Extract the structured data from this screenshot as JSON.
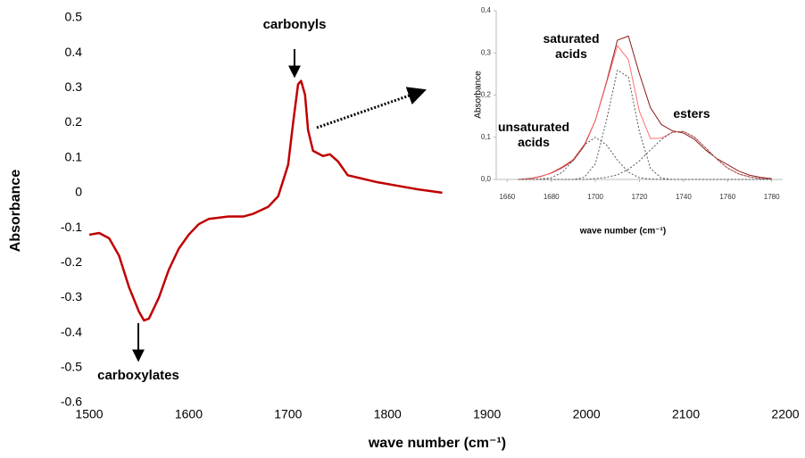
{
  "chart_data": [
    {
      "type": "line",
      "xlabel": "wave number (cm⁻¹)",
      "ylabel": "Absorbance",
      "xlim": [
        1500,
        2200
      ],
      "xticks": [
        1500,
        1600,
        1700,
        1800,
        1900,
        2000,
        2100,
        2200
      ],
      "ylim": [
        -0.6,
        0.5
      ],
      "yticks": [
        -0.6,
        -0.5,
        -0.4,
        -0.3,
        -0.2,
        -0.1,
        0,
        0.1,
        0.2,
        0.3,
        0.4,
        0.5
      ],
      "annotations": [
        [
          "carbonyls"
        ],
        [
          "carboxylates"
        ]
      ],
      "x": [
        1500,
        1510,
        1520,
        1530,
        1540,
        1550,
        1555,
        1560,
        1570,
        1580,
        1590,
        1600,
        1610,
        1620,
        1640,
        1655,
        1665,
        1680,
        1690,
        1700,
        1705,
        1710,
        1713,
        1717,
        1720,
        1725,
        1735,
        1742,
        1750,
        1760,
        1775,
        1790,
        1810,
        1830,
        1855
      ],
      "series": [
        {
          "name": null,
          "color": "#c00000",
          "values": [
            -0.12,
            -0.115,
            -0.13,
            -0.18,
            -0.27,
            -0.34,
            -0.365,
            -0.36,
            -0.3,
            -0.22,
            -0.16,
            -0.12,
            -0.09,
            -0.075,
            -0.068,
            -0.068,
            -0.06,
            -0.04,
            -0.01,
            0.08,
            0.2,
            0.31,
            0.32,
            0.28,
            0.18,
            0.12,
            0.105,
            0.11,
            0.09,
            0.05,
            0.04,
            0.03,
            0.02,
            0.01,
            0
          ]
        }
      ]
    },
    {
      "type": "line",
      "xlabel": "wave number (cm⁻¹)",
      "ylabel": "Absorbance",
      "xlim": [
        1655,
        1785
      ],
      "xticks": [
        1660,
        1680,
        1700,
        1720,
        1740,
        1760,
        1780
      ],
      "ylim": [
        0,
        0.4
      ],
      "yticks": [
        {
          "value": 0,
          "label": "0,0"
        },
        {
          "value": 0.1,
          "label": "0,1"
        },
        {
          "value": 0.2,
          "label": "0,2"
        },
        {
          "value": 0.3,
          "label": "0,3"
        },
        {
          "value": 0.4,
          "label": "0,4"
        }
      ],
      "annotations": [
        [
          "saturated",
          "acids"
        ],
        [
          "unsaturated",
          "acids"
        ],
        [
          "esters"
        ]
      ],
      "x": [
        1665,
        1670,
        1675,
        1680,
        1685,
        1690,
        1695,
        1700,
        1705,
        1710,
        1715,
        1720,
        1725,
        1730,
        1735,
        1740,
        1745,
        1750,
        1755,
        1760,
        1765,
        1770,
        1775,
        1780
      ],
      "series": [
        {
          "name": null,
          "color": "#8b1a1a",
          "dash": false,
          "values": [
            0,
            0.002,
            0.007,
            0.015,
            0.028,
            0.045,
            0.08,
            0.14,
            0.23,
            0.33,
            0.34,
            0.25,
            0.17,
            0.13,
            0.115,
            0.11,
            0.095,
            0.07,
            0.05,
            0.035,
            0.02,
            0.01,
            0.005,
            0.002
          ]
        },
        {
          "name": null,
          "color": "#ff6f6f",
          "dash": false,
          "values": [
            0,
            0.001,
            0.006,
            0.016,
            0.03,
            0.048,
            0.083,
            0.14,
            0.227,
            0.317,
            0.284,
            0.161,
            0.097,
            0.098,
            0.112,
            0.114,
            0.1,
            0.075,
            0.049,
            0.027,
            0.013,
            0.006,
            0.002,
            0.001
          ]
        },
        {
          "name": null,
          "color": "#555555",
          "dash": true,
          "values": [
            0,
            0,
            0.001,
            0.004,
            0.017,
            0.046,
            0.082,
            0.1,
            0.082,
            0.046,
            0.017,
            0.004,
            0.001,
            0,
            0,
            0,
            0,
            0,
            0,
            0,
            0,
            0,
            0,
            0
          ]
        },
        {
          "name": null,
          "color": "#555555",
          "dash": true,
          "values": [
            0,
            0,
            0,
            0,
            0,
            0,
            0.005,
            0.037,
            0.139,
            0.259,
            0.243,
            0.113,
            0.026,
            0.003,
            0,
            0,
            0,
            0,
            0,
            0,
            0,
            0,
            0,
            0
          ]
        },
        {
          "name": null,
          "color": "#555555",
          "dash": true,
          "values": [
            0,
            0,
            0,
            0,
            0,
            0,
            0,
            0.002,
            0.005,
            0.011,
            0.024,
            0.044,
            0.07,
            0.095,
            0.112,
            0.114,
            0.1,
            0.075,
            0.049,
            0.027,
            0.013,
            0.006,
            0.002,
            0.001
          ]
        }
      ]
    }
  ]
}
